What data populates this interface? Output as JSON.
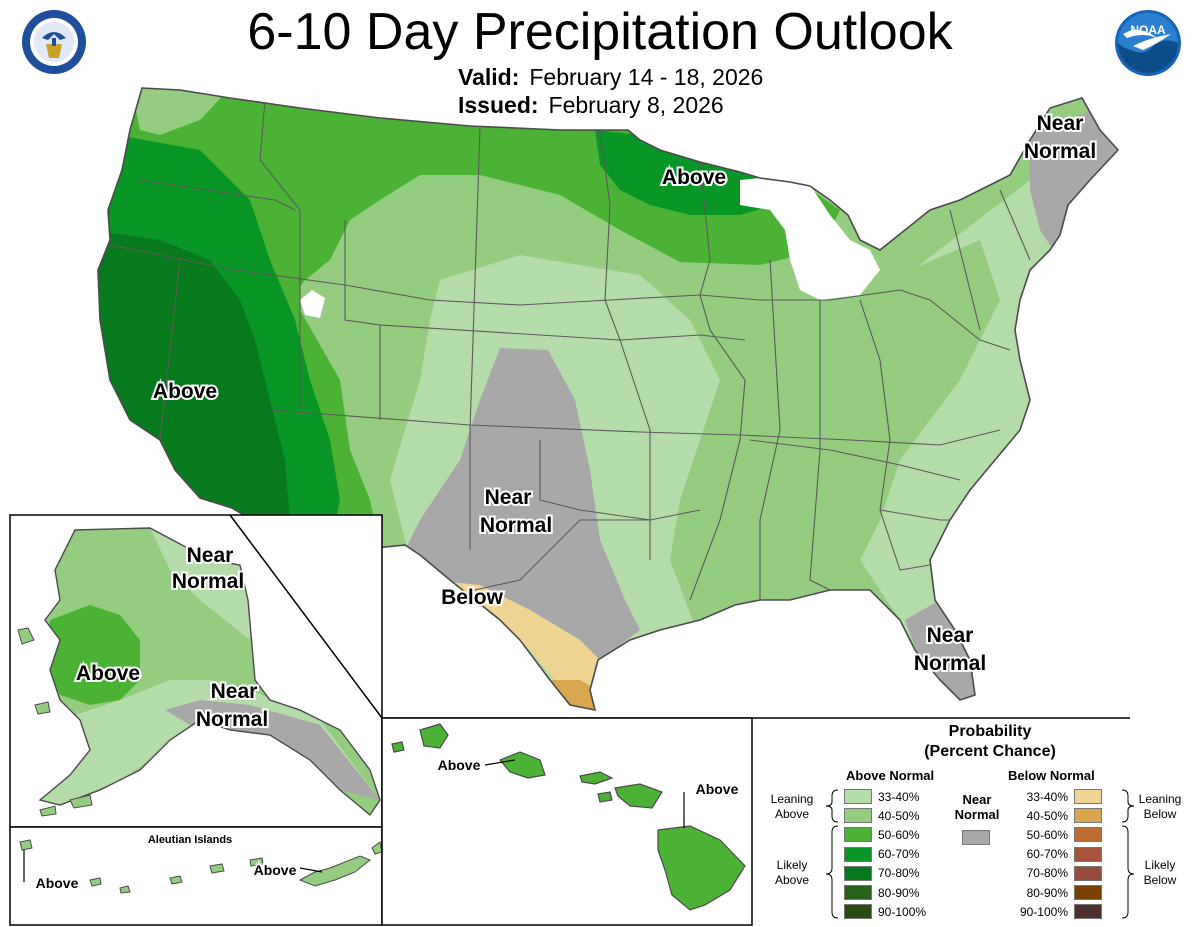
{
  "header": {
    "title": "6-10 Day Precipitation Outlook",
    "valid_label": "Valid:",
    "valid_value": "February 14 - 18, 2026",
    "issued_label": "Issued:",
    "issued_value": "February 8, 2026"
  },
  "logos": {
    "left": "doc-seal-icon",
    "right": "noaa-logo-icon"
  },
  "map_labels": {
    "conus_west_above": "Above",
    "conus_north_above": "Above",
    "northeast_near": "Near",
    "northeast_normal": "Normal",
    "plains_near": "Near",
    "plains_normal": "Normal",
    "texas_below": "Below",
    "florida_near": "Near",
    "florida_normal": "Normal",
    "alaska_north_near": "Near",
    "alaska_north_normal": "Normal",
    "alaska_above": "Above",
    "alaska_south_near": "Near",
    "alaska_south_normal": "Normal",
    "aleutian_title": "Aleutian Islands",
    "aleutian_above_left": "Above",
    "aleutian_above_right": "Above",
    "hawaii_above_left": "Above",
    "hawaii_above_right": "Above"
  },
  "colors": {
    "above_33_40": "#b3dca9",
    "above_40_50": "#94cd7f",
    "above_50_60": "#4cb236",
    "above_60_70": "#089627",
    "above_70_80": "#077a1d",
    "above_80_90": "#286119",
    "above_90_100": "#284c10",
    "near_normal": "#a8a8a8",
    "below_33_40": "#f0d493",
    "below_40_50": "#d8a750",
    "below_50_60": "#bd6c32",
    "below_60_70": "#a6533b",
    "below_70_80": "#964b3b",
    "below_80_90": "#7a4000",
    "below_90_100": "#4f2e2e",
    "water": "#ffffff",
    "border": "#505050"
  },
  "legend": {
    "title_line1": "Probability",
    "title_line2": "(Percent Chance)",
    "above_header": "Above Normal",
    "below_header": "Below Normal",
    "near_line1": "Near",
    "near_line2": "Normal",
    "leaning_above_1": "Leaning",
    "leaning_above_2": "Above",
    "likely_above_1": "Likely",
    "likely_above_2": "Above",
    "leaning_below_1": "Leaning",
    "leaning_below_2": "Below",
    "likely_below_1": "Likely",
    "likely_below_2": "Below",
    "above_items": [
      {
        "label": "33-40%",
        "color": "#b3dca9"
      },
      {
        "label": "40-50%",
        "color": "#94cd7f"
      },
      {
        "label": "50-60%",
        "color": "#4cb236"
      },
      {
        "label": "60-70%",
        "color": "#089627"
      },
      {
        "label": "70-80%",
        "color": "#077a1d"
      },
      {
        "label": "80-90%",
        "color": "#286119"
      },
      {
        "label": "90-100%",
        "color": "#284c10"
      }
    ],
    "below_items": [
      {
        "label": "33-40%",
        "color": "#f0d493"
      },
      {
        "label": "40-50%",
        "color": "#d8a750"
      },
      {
        "label": "50-60%",
        "color": "#bd6c32"
      },
      {
        "label": "60-70%",
        "color": "#a6533b"
      },
      {
        "label": "70-80%",
        "color": "#964b3b"
      },
      {
        "label": "80-90%",
        "color": "#7a4000"
      },
      {
        "label": "90-100%",
        "color": "#4f2e2e"
      }
    ]
  }
}
